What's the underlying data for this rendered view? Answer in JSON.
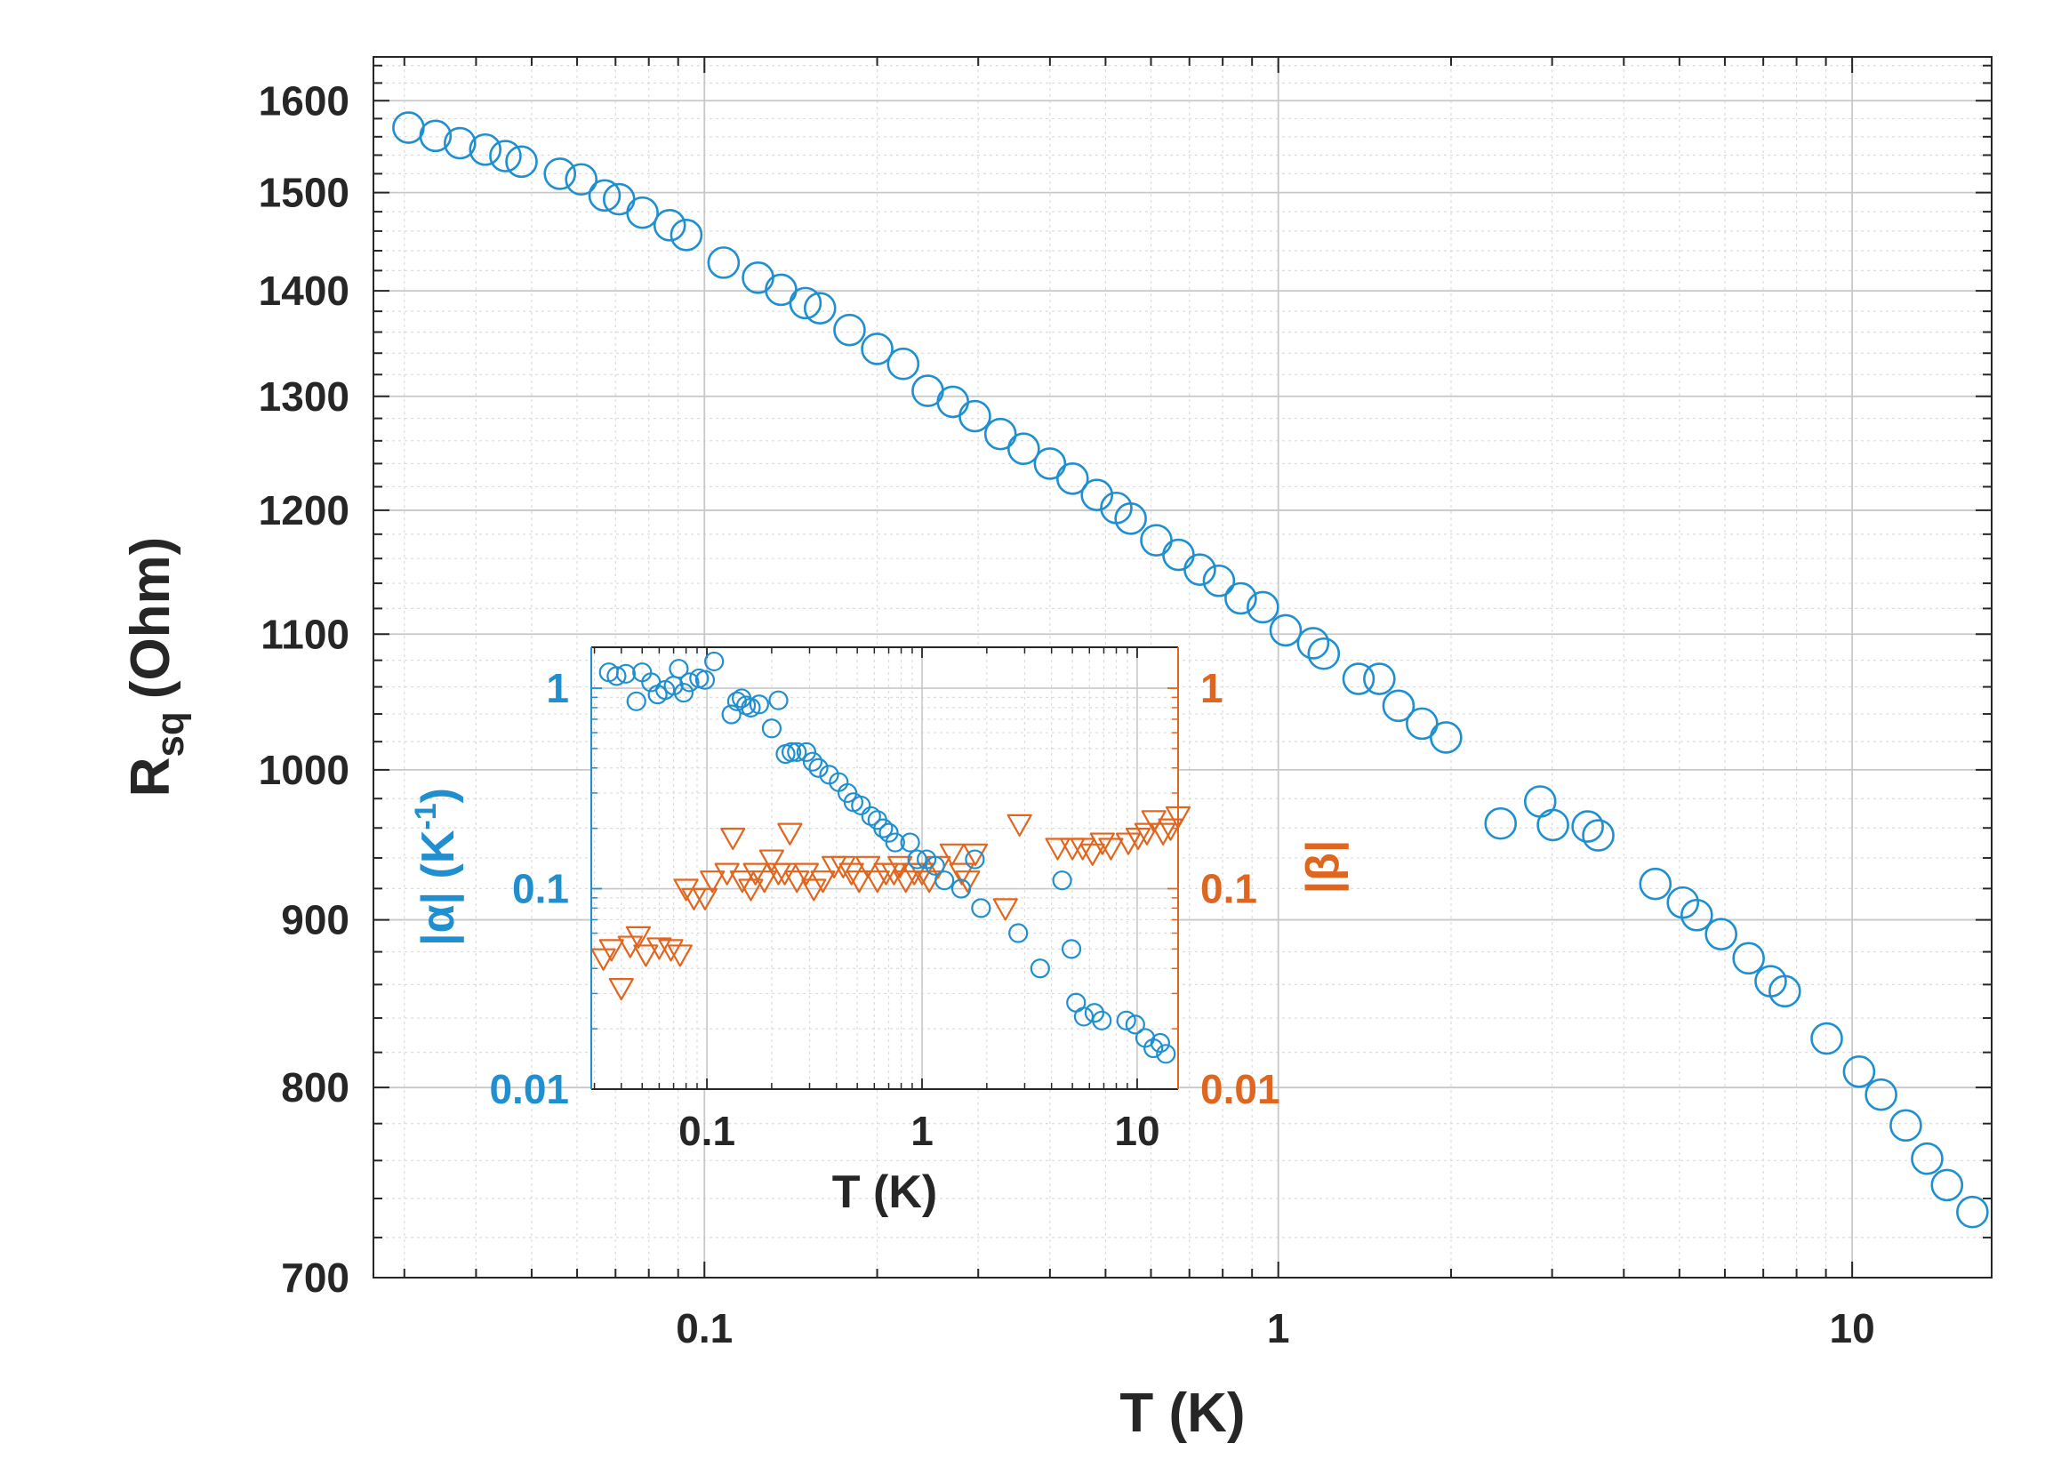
{
  "chart_data": [
    {
      "type": "scatter",
      "title": "",
      "xlabel": "T (K)",
      "ylabel_main": "R",
      "ylabel_sub": "sq",
      "ylabel_unit": "(Ohm)",
      "xscale": "log",
      "yscale": "log",
      "xlim": [
        0.0265,
        17.5
      ],
      "ylim": [
        700,
        1650
      ],
      "xticks": [
        0.1,
        1,
        10
      ],
      "xtick_labels": [
        "0.1",
        "1",
        "10"
      ],
      "yticks": [
        700,
        800,
        900,
        1000,
        1100,
        1200,
        1300,
        1400,
        1500,
        1600
      ],
      "ytick_labels": [
        "700",
        "800",
        "900",
        "1000",
        "1100",
        "1200",
        "1300",
        "1400",
        "1500",
        "1600"
      ],
      "grid": true,
      "marker": "circle-open",
      "color": "#1f8fcf",
      "series": [
        {
          "name": "R_sq",
          "x": [
            0.0305,
            0.034,
            0.0375,
            0.0415,
            0.045,
            0.048,
            0.056,
            0.061,
            0.067,
            0.071,
            0.078,
            0.087,
            0.093,
            0.108,
            0.124,
            0.136,
            0.15,
            0.159,
            0.179,
            0.2,
            0.222,
            0.245,
            0.271,
            0.296,
            0.328,
            0.36,
            0.4,
            0.438,
            0.483,
            0.522,
            0.553,
            0.613,
            0.67,
            0.73,
            0.788,
            0.86,
            0.94,
            1.03,
            1.15,
            1.2,
            1.38,
            1.5,
            1.62,
            1.78,
            1.96,
            2.44,
            2.86,
            3.01,
            3.46,
            3.61,
            4.54,
            5.07,
            5.36,
            5.91,
            6.6,
            7.21,
            7.63,
            9.03,
            10.28,
            11.23,
            12.4,
            13.51,
            14.63,
            16.2
          ],
          "y": [
            1570,
            1561,
            1553,
            1546,
            1539,
            1533,
            1520,
            1514,
            1497,
            1493,
            1479,
            1466,
            1456,
            1428,
            1413,
            1401,
            1388,
            1383,
            1362,
            1344,
            1330,
            1305,
            1295,
            1282,
            1266,
            1253,
            1240,
            1227,
            1213,
            1202,
            1193,
            1175,
            1163,
            1151,
            1142,
            1128,
            1121,
            1103,
            1093,
            1085,
            1066,
            1066,
            1046,
            1033,
            1023,
            963,
            978,
            962,
            961,
            955,
            923,
            911,
            903,
            891,
            876,
            862,
            856,
            828,
            809,
            796,
            779,
            761,
            747,
            733
          ]
        }
      ]
    },
    {
      "type": "scatter",
      "title": "",
      "xlabel": "T (K)",
      "ylabel_left": "|α| (K",
      "ylabel_left_sup": "-1",
      "ylabel_left_close": ")",
      "ylabel_right": "|β|",
      "xscale": "log",
      "yscale": "log",
      "xlim": [
        0.029,
        15.5
      ],
      "ylim_left": [
        0.01,
        1.6
      ],
      "ylim_right": [
        0.01,
        1.6
      ],
      "xticks": [
        0.1,
        1,
        10
      ],
      "xtick_labels": [
        "0.1",
        "1",
        "10"
      ],
      "yticks_left": [
        0.01,
        0.1,
        1
      ],
      "ytick_labels_left": [
        "0.01",
        "0.1",
        "1"
      ],
      "yticks_right": [
        0.01,
        0.1,
        1
      ],
      "ytick_labels_right": [
        "0.01",
        "0.1",
        "1"
      ],
      "grid": true,
      "series": [
        {
          "name": "|alpha|",
          "axis": "left",
          "marker": "circle-open",
          "color": "#1f8fcf",
          "x": [
            0.035,
            0.038,
            0.042,
            0.047,
            0.05,
            0.055,
            0.059,
            0.064,
            0.07,
            0.074,
            0.078,
            0.083,
            0.092,
            0.098,
            0.108,
            0.13,
            0.138,
            0.145,
            0.152,
            0.16,
            0.175,
            0.2,
            0.215,
            0.232,
            0.247,
            0.262,
            0.29,
            0.31,
            0.33,
            0.37,
            0.41,
            0.45,
            0.48,
            0.52,
            0.58,
            0.62,
            0.66,
            0.7,
            0.75,
            0.88,
            0.95,
            1.05,
            1.15,
            1.27,
            1.52,
            1.76,
            1.88,
            2.8,
            3.54,
            4.48,
            4.95,
            5.2,
            5.65,
            6.33,
            6.85,
            8.9,
            9.8,
            10.9,
            11.9,
            12.8,
            13.6
          ],
          "y": [
            1.2,
            1.15,
            1.18,
            0.86,
            1.2,
            1.07,
            0.93,
            0.98,
            1.03,
            1.25,
            0.95,
            1.07,
            1.12,
            1.1,
            1.36,
            0.74,
            0.86,
            0.89,
            0.82,
            0.8,
            0.83,
            0.63,
            0.87,
            0.47,
            0.48,
            0.48,
            0.48,
            0.43,
            0.4,
            0.37,
            0.34,
            0.3,
            0.27,
            0.26,
            0.23,
            0.22,
            0.2,
            0.19,
            0.17,
            0.17,
            0.14,
            0.14,
            0.13,
            0.11,
            0.1,
            0.14,
            0.08,
            0.06,
            0.04,
            0.11,
            0.05,
            0.027,
            0.023,
            0.024,
            0.022,
            0.022,
            0.021,
            0.018,
            0.016,
            0.017,
            0.015
          ]
        },
        {
          "name": "|beta|",
          "axis": "right",
          "marker": "triangle-down-open",
          "color": "#e0661f",
          "x": [
            0.033,
            0.036,
            0.04,
            0.044,
            0.048,
            0.052,
            0.06,
            0.068,
            0.075,
            0.08,
            0.087,
            0.098,
            0.106,
            0.124,
            0.132,
            0.146,
            0.16,
            0.168,
            0.185,
            0.2,
            0.215,
            0.23,
            0.243,
            0.262,
            0.29,
            0.314,
            0.346,
            0.39,
            0.43,
            0.47,
            0.51,
            0.56,
            0.62,
            0.68,
            0.74,
            0.79,
            0.84,
            0.92,
            1.0,
            1.08,
            1.19,
            1.38,
            1.53,
            1.63,
            1.77,
            2.44,
            2.84,
            4.27,
            5.0,
            5.58,
            6.2,
            6.89,
            7.55,
            9.1,
            10.1,
            11.1,
            11.95,
            13.2,
            14.3,
            15.5
          ],
          "y": [
            0.045,
            0.05,
            0.032,
            0.052,
            0.058,
            0.047,
            0.051,
            0.05,
            0.047,
            0.1,
            0.09,
            0.09,
            0.11,
            0.12,
            0.18,
            0.11,
            0.1,
            0.12,
            0.11,
            0.14,
            0.12,
            0.12,
            0.19,
            0.11,
            0.12,
            0.1,
            0.11,
            0.13,
            0.13,
            0.12,
            0.11,
            0.13,
            0.11,
            0.12,
            0.12,
            0.13,
            0.11,
            0.12,
            0.12,
            0.11,
            0.13,
            0.15,
            0.12,
            0.11,
            0.15,
            0.08,
            0.21,
            0.16,
            0.16,
            0.16,
            0.15,
            0.17,
            0.16,
            0.17,
            0.18,
            0.19,
            0.22,
            0.19,
            0.2,
            0.23
          ]
        }
      ]
    }
  ]
}
